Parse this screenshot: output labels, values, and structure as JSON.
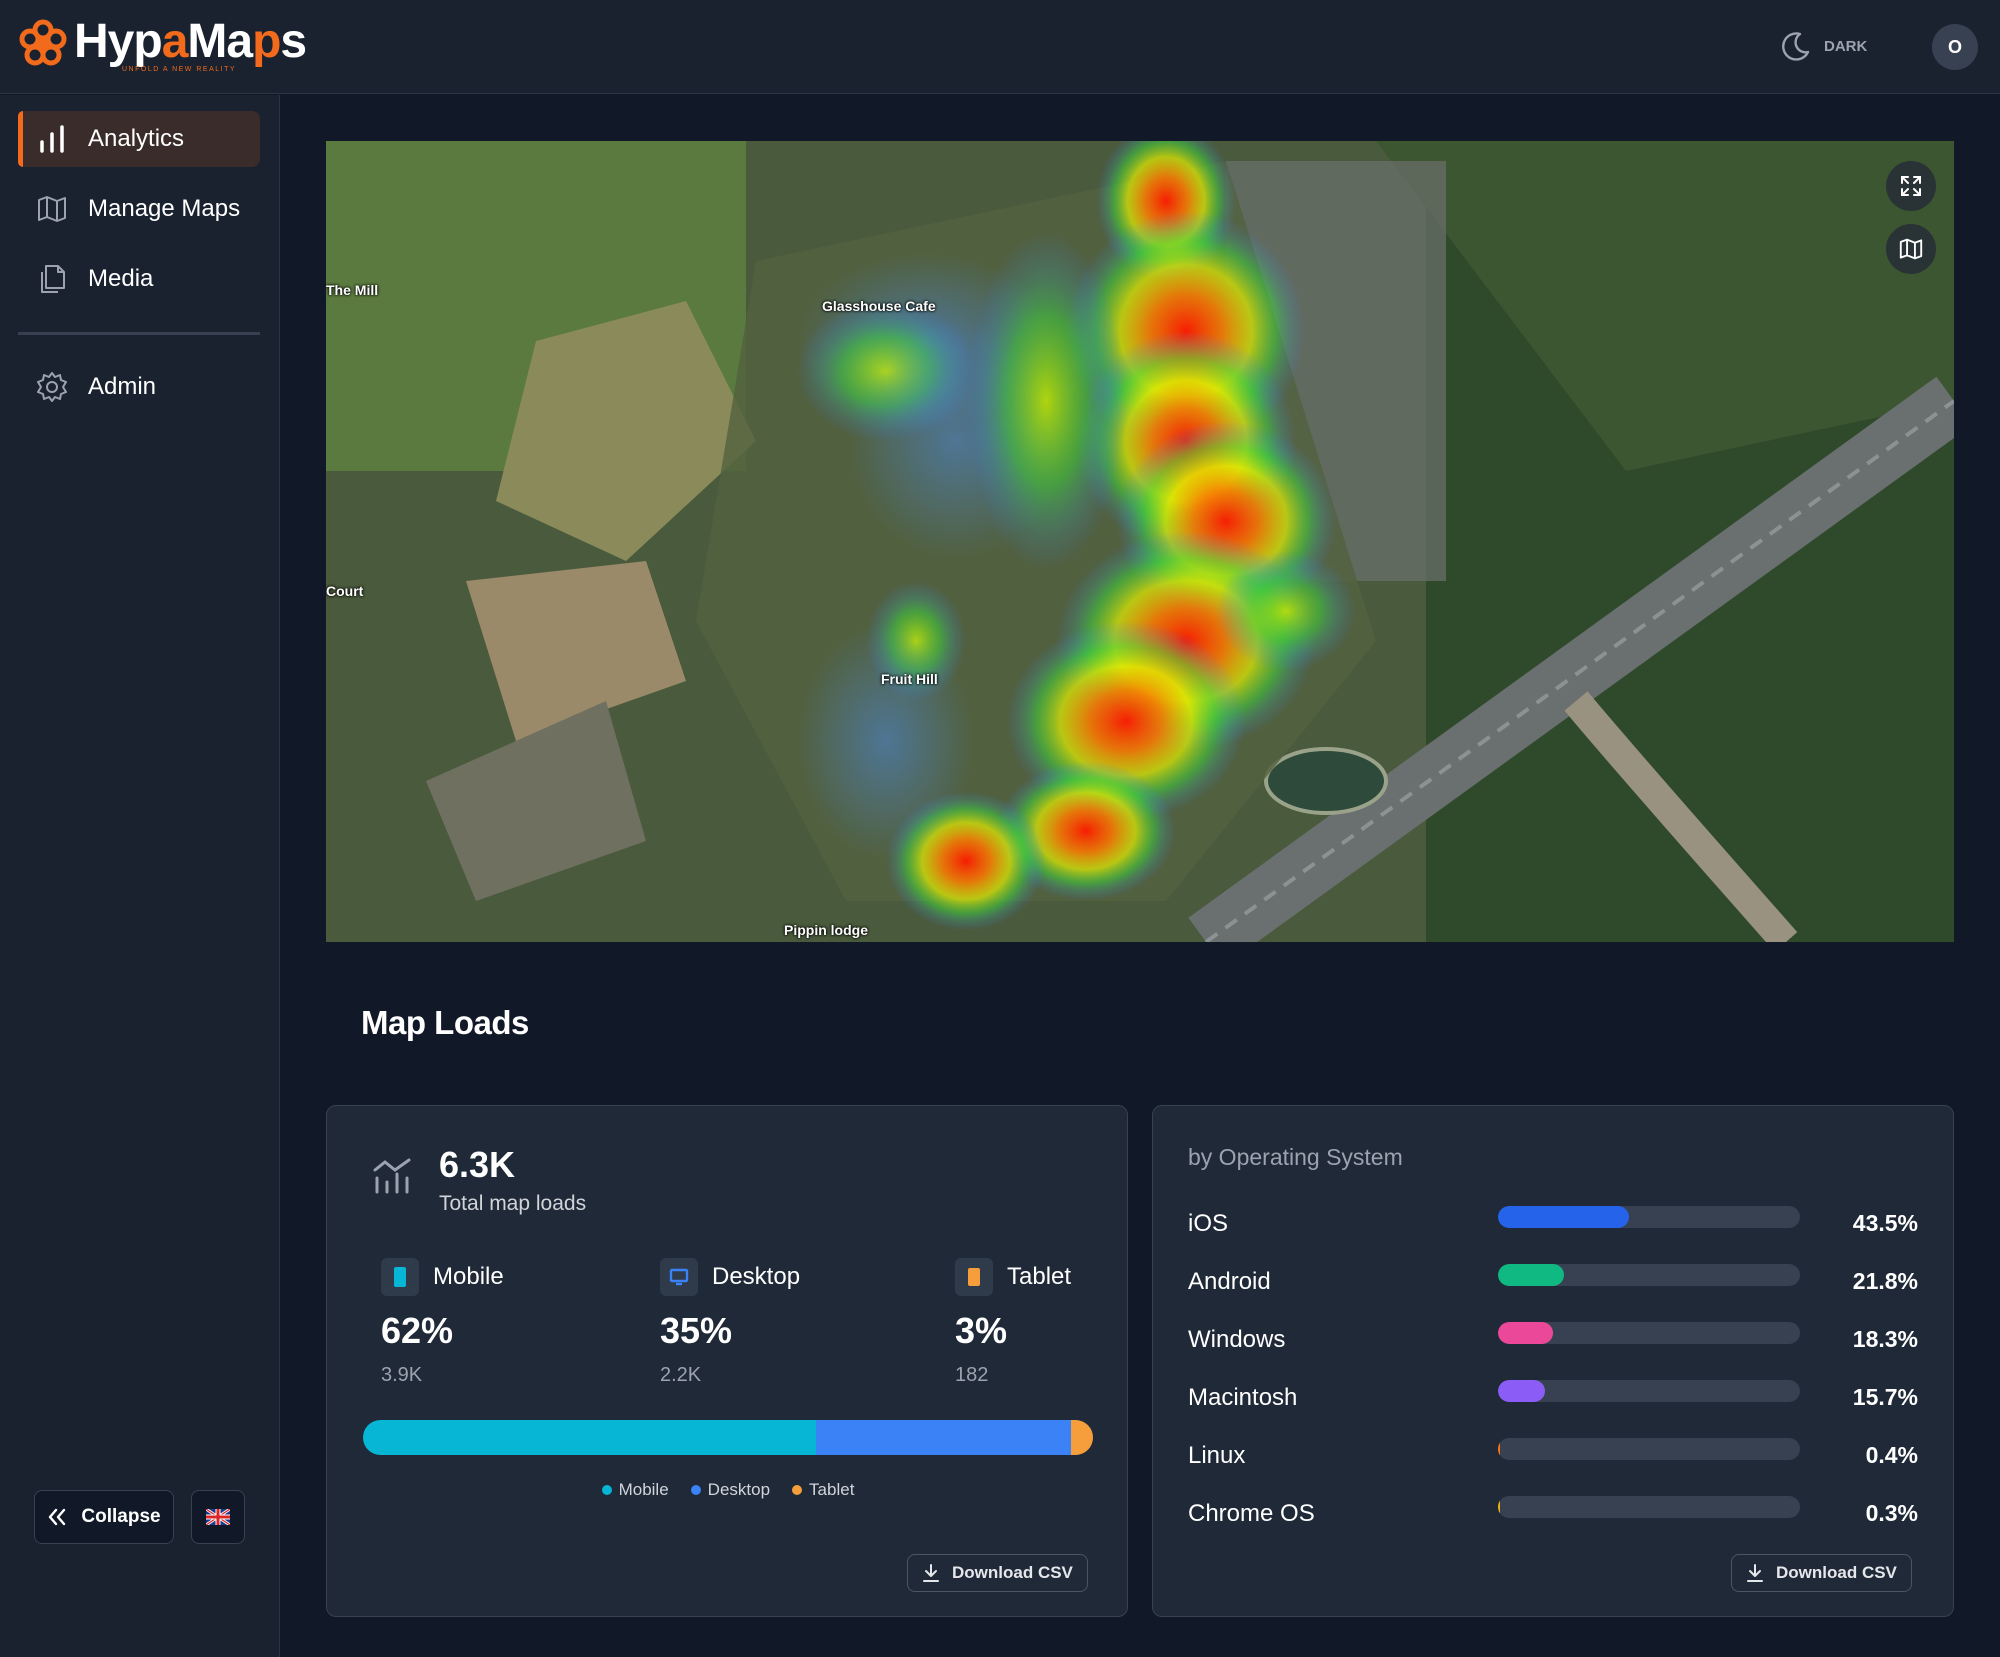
{
  "app": {
    "logo_part1": "Hyp",
    "logo_part2": "a",
    "logo_part3": "Ma",
    "logo_part4": "p",
    "logo_part5": "s",
    "tagline": "UNFOLD A NEW REALITY",
    "theme_label": "DARK",
    "avatar_initial": "O",
    "brand_color": "#f26a1b"
  },
  "sidebar": {
    "items": [
      {
        "label": "Analytics",
        "icon": "bar-chart-icon",
        "active": true
      },
      {
        "label": "Manage Maps",
        "icon": "map-icon"
      },
      {
        "label": "Media",
        "icon": "media-icon"
      },
      {
        "label": "Admin",
        "icon": "gear-icon"
      }
    ],
    "collapse_label": "Collapse",
    "language_icon": "uk-flag-icon"
  },
  "map": {
    "labels": [
      "The Mill",
      "Glasshouse Cafe",
      "Court",
      "Fruit Hill",
      "Pippin lodge"
    ],
    "fullscreen_icon": "expand-icon",
    "layer_icon": "map-icon"
  },
  "section": {
    "title": "Map Loads"
  },
  "loads": {
    "total_value": "6.3K",
    "total_label": "Total map loads",
    "devices": [
      {
        "name": "Mobile",
        "pct": "62%",
        "count": "3.9K",
        "share": 0.62,
        "color": "#06b6d4",
        "icon": "mobile-icon"
      },
      {
        "name": "Desktop",
        "pct": "35%",
        "count": "2.2K",
        "share": 0.35,
        "color": "#3b82f6",
        "icon": "desktop-icon"
      },
      {
        "name": "Tablet",
        "pct": "3%",
        "count": "182",
        "share": 0.03,
        "color": "#f59e3b",
        "icon": "tablet-icon"
      }
    ],
    "download_label": "Download CSV"
  },
  "os": {
    "title": "by Operating System",
    "rows": [
      {
        "name": "iOS",
        "pct": "43.5%",
        "value": 43.5,
        "color": "#2563eb"
      },
      {
        "name": "Android",
        "pct": "21.8%",
        "value": 21.8,
        "color": "#10b981"
      },
      {
        "name": "Windows",
        "pct": "18.3%",
        "value": 18.3,
        "color": "#ec4899"
      },
      {
        "name": "Macintosh",
        "pct": "15.7%",
        "value": 15.7,
        "color": "#8b5cf6"
      },
      {
        "name": "Linux",
        "pct": "0.4%",
        "value": 0.4,
        "color": "#f97316"
      },
      {
        "name": "Chrome OS",
        "pct": "0.3%",
        "value": 0.3,
        "color": "#eab308"
      }
    ],
    "download_label": "Download CSV"
  }
}
